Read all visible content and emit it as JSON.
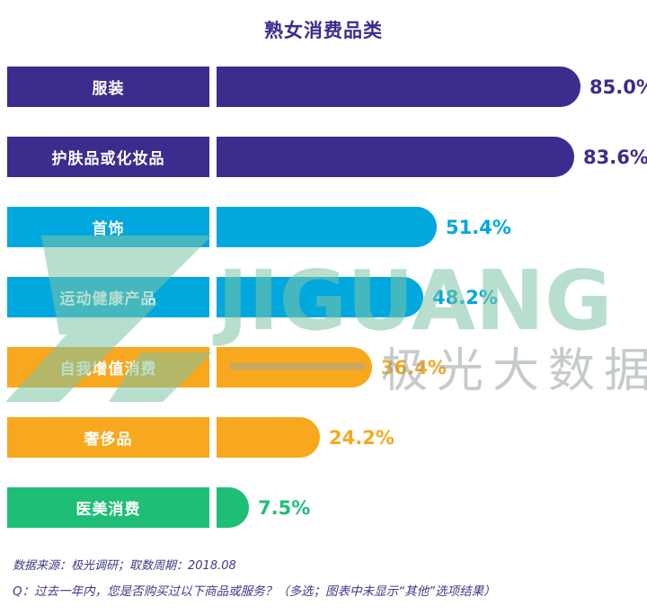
{
  "title": "熟女消费品类",
  "chart_data": {
    "type": "bar",
    "orientation": "horizontal",
    "title": "熟女消费品类",
    "xlabel": "",
    "ylabel": "",
    "xlim": [
      0,
      100
    ],
    "grid": false,
    "legend": "none",
    "categories": [
      "服装",
      "护肤品或化妆品",
      "首饰",
      "运动健康产品",
      "自我增值消费",
      "奢侈品",
      "医美消费"
    ],
    "values": [
      85.0,
      83.6,
      51.4,
      48.2,
      36.4,
      24.2,
      7.5
    ],
    "value_labels": [
      "85.0%",
      "83.6%",
      "51.4%",
      "48.2%",
      "36.4%",
      "24.2%",
      "7.5%"
    ],
    "colors": [
      "#3D2C8D",
      "#3D2C8D",
      "#00A8DE",
      "#00A8DE",
      "#F7A81E",
      "#F7A81E",
      "#1EBE77"
    ]
  },
  "accent_colors": {
    "purple": "#3D2C8D",
    "cyan": "#00A8DE",
    "orange": "#F7A81E",
    "green": "#1EBE77",
    "watermark_green": "#7FC5A6",
    "watermark_gray": "#97A29D"
  },
  "watermark": {
    "brand": "JIGUANG",
    "brand_cn": "极光大数据"
  },
  "footer": {
    "source": "数据来源：极光调研；取数周期：2018.08",
    "question": "Q：过去一年内，您是否购买过以下商品或服务？（多选；图表中未显示“其他”选项结果）"
  }
}
